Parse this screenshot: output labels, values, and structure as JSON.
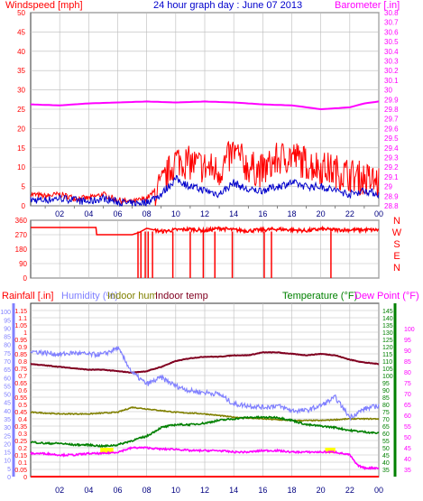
{
  "header": {
    "wind_label": "Windspeed [mph]",
    "title": "24 hour graph day : June 07 2013",
    "baro_label": "Barometer [.in]"
  },
  "colors": {
    "wind": "#ff0000",
    "wind_avg": "#0000cc",
    "barometer": "#ff00ff",
    "rain": "#ff0000",
    "humidity": "#8080ff",
    "indoor_hum": "#808000",
    "indoor_temp": "#800020",
    "temperature": "#008000",
    "dew_point": "#ff00ff",
    "sun": "#ffff00"
  },
  "chart_data": [
    {
      "type": "line",
      "title": "24 hour graph day : June 07 2013",
      "ylabel": "Windspeed [mph]",
      "ylim": [
        0,
        50
      ],
      "y_ticks": [
        0,
        5,
        10,
        15,
        20,
        25,
        30,
        35,
        40,
        45,
        50
      ],
      "y2label": "Barometer [.in]",
      "y2lim": [
        28.8,
        30.8
      ],
      "y2_ticks": [
        "28.8",
        "28.9",
        "29",
        "29.1",
        "29.2",
        "29.3",
        "29.4",
        "29.5",
        "29.6",
        "29.7",
        "29.8",
        "29.9",
        "30",
        "30.1",
        "30.2",
        "30.3",
        "30.4",
        "30.5",
        "30.6",
        "30.7",
        "30.8"
      ],
      "x_ticks": [
        "02",
        "04",
        "06",
        "08",
        "10",
        "12",
        "14",
        "16",
        "18",
        "20",
        "22",
        "00"
      ],
      "grid": true,
      "series": [
        {
          "hours": [
            0,
            1,
            2,
            3,
            4,
            5,
            6,
            7,
            8,
            9,
            10,
            11,
            12,
            13,
            14,
            15,
            16,
            17,
            18,
            19,
            20,
            21,
            22,
            23,
            24
          ],
          "values": [
            3,
            2.5,
            3,
            2,
            2,
            3,
            1.5,
            1,
            2,
            5,
            12,
            11,
            10,
            9,
            14,
            10,
            9,
            12,
            13,
            11,
            10,
            9,
            8,
            7,
            6
          ]
        },
        {
          "hours": [
            0,
            1,
            2,
            3,
            4,
            5,
            6,
            7,
            8,
            9,
            10,
            11,
            12,
            13,
            14,
            15,
            16,
            17,
            18,
            19,
            20,
            21,
            22,
            23,
            24
          ],
          "values": [
            1.5,
            1.5,
            2,
            1.5,
            1,
            2,
            1,
            0.5,
            1,
            3,
            7,
            5,
            4,
            3,
            6,
            4,
            4,
            5,
            6,
            5,
            5,
            4,
            3,
            4,
            3
          ]
        },
        {
          "hours": [
            0,
            2,
            4,
            6,
            8,
            10,
            12,
            14,
            16,
            18,
            20,
            22,
            23,
            24
          ],
          "values": [
            29.85,
            29.84,
            29.86,
            29.87,
            29.88,
            29.87,
            29.88,
            29.87,
            29.85,
            29.84,
            29.8,
            29.82,
            29.86,
            29.88
          ]
        }
      ]
    },
    {
      "type": "line",
      "ylim": [
        0,
        360
      ],
      "y_ticks": [
        0,
        90,
        180,
        270,
        360
      ],
      "y2_ticks": [
        "N",
        "W",
        "S",
        "E",
        "N"
      ],
      "x_ticks": [
        "02",
        "04",
        "06",
        "08",
        "10",
        "12",
        "14",
        "16",
        "18",
        "20",
        "22",
        "00"
      ],
      "series": [
        {
          "hours": [
            0,
            4.5,
            4.5,
            7,
            7.5,
            8,
            8.5,
            9,
            10,
            11,
            12,
            13,
            14,
            15,
            16,
            17,
            18,
            19,
            20,
            21,
            22,
            23,
            24
          ],
          "values": [
            315,
            315,
            270,
            270,
            285,
            310,
            300,
            290,
            300,
            305,
            295,
            310,
            300,
            295,
            300,
            305,
            300,
            295,
            305,
            300,
            300,
            300,
            300
          ]
        }
      ]
    },
    {
      "type": "line",
      "ylabel": "Rainfall [.in]",
      "ylim": [
        0,
        1.2
      ],
      "y_ticks": [
        "0",
        "0.05",
        "0.1",
        "0.15",
        "0.2",
        "0.25",
        "0.3",
        "0.35",
        "0.4",
        "0.45",
        "0.5",
        "0.55",
        "0.6",
        "0.65",
        "0.7",
        "0.75",
        "0.8",
        "0.85",
        "0.9",
        "0.95",
        "1",
        "1.05",
        "1.1",
        "1.15"
      ],
      "humidity_ticks": [
        0,
        5,
        10,
        15,
        20,
        25,
        30,
        35,
        40,
        45,
        50,
        55,
        60,
        65,
        70,
        75,
        80,
        85,
        90,
        95,
        100
      ],
      "temp_ticks": [
        35,
        40,
        45,
        50,
        55,
        60,
        65,
        70,
        75,
        80,
        85,
        90,
        95,
        100,
        105,
        110,
        115,
        120,
        125,
        130,
        135,
        140,
        145
      ],
      "dew_ticks": [
        35,
        40,
        45,
        50,
        55,
        60,
        65,
        70,
        75,
        80,
        85,
        90,
        95,
        100
      ],
      "x_ticks": [
        "02",
        "04",
        "06",
        "08",
        "10",
        "12",
        "14",
        "16",
        "18",
        "20",
        "22",
        "00"
      ],
      "legend": [
        "Rainfall [.in]",
        "Humidity (%)",
        "Indoor hum",
        "Indoor temp",
        "Temperature (°F)",
        "Dew Point (°F)"
      ],
      "series": [
        {
          "name": "Rainfall [.in]",
          "hours": [
            0,
            24
          ],
          "values": [
            0,
            0
          ]
        },
        {
          "name": "Humidity (%)",
          "hours": [
            0,
            1,
            2,
            3,
            4,
            5,
            6,
            7,
            8,
            9,
            10,
            11,
            12,
            13,
            14,
            15,
            16,
            17,
            18,
            19,
            20,
            21,
            22,
            23,
            24
          ],
          "values": [
            76,
            75,
            74,
            75,
            74,
            74,
            78,
            63,
            56,
            60,
            55,
            52,
            51,
            50,
            44,
            43,
            42,
            43,
            40,
            40,
            43,
            48,
            36,
            41,
            43
          ]
        },
        {
          "name": "Indoor hum",
          "hours": [
            0,
            2,
            4,
            6,
            7,
            8,
            10,
            12,
            14,
            16,
            18,
            20,
            22,
            24
          ],
          "values": [
            39,
            38,
            38,
            39,
            42,
            41,
            39,
            38,
            36,
            35,
            34,
            34,
            35,
            35
          ]
        },
        {
          "name": "Indoor temp",
          "hours": [
            0,
            1,
            2,
            3,
            4,
            5,
            6,
            7,
            8,
            9,
            10,
            11,
            12,
            13,
            14,
            15,
            16,
            17,
            18,
            19,
            20,
            21,
            22,
            23,
            24
          ],
          "values": [
            108,
            107,
            106,
            105,
            104,
            104,
            103,
            102,
            103,
            106,
            110,
            112,
            113,
            113,
            114,
            114,
            116,
            116,
            115,
            114,
            115,
            114,
            111,
            109,
            108
          ]
        },
        {
          "name": "Temperature (°F)",
          "hours": [
            0,
            1,
            2,
            3,
            4,
            5,
            6,
            7,
            8,
            9,
            10,
            11,
            12,
            13,
            14,
            15,
            16,
            17,
            18,
            19,
            20,
            21,
            22,
            23,
            24
          ],
          "values": [
            54,
            53,
            53,
            52,
            52,
            51,
            52,
            55,
            58,
            64,
            66,
            66,
            67,
            69,
            70,
            71,
            71,
            71,
            69,
            66,
            65,
            64,
            62,
            61,
            60
          ]
        },
        {
          "name": "Dew Point (°F)",
          "hours": [
            0,
            1,
            2,
            3,
            4,
            5,
            6,
            7,
            8,
            9,
            10,
            11,
            12,
            13,
            14,
            15,
            16,
            17,
            18,
            19,
            20,
            21,
            22,
            22.5,
            23,
            24
          ],
          "values": [
            46,
            46,
            45,
            45,
            46,
            46,
            47,
            50,
            50,
            49,
            49,
            48,
            48,
            48,
            47,
            47,
            48,
            48,
            47,
            47,
            47,
            47,
            45,
            38,
            36,
            36
          ]
        }
      ]
    }
  ]
}
